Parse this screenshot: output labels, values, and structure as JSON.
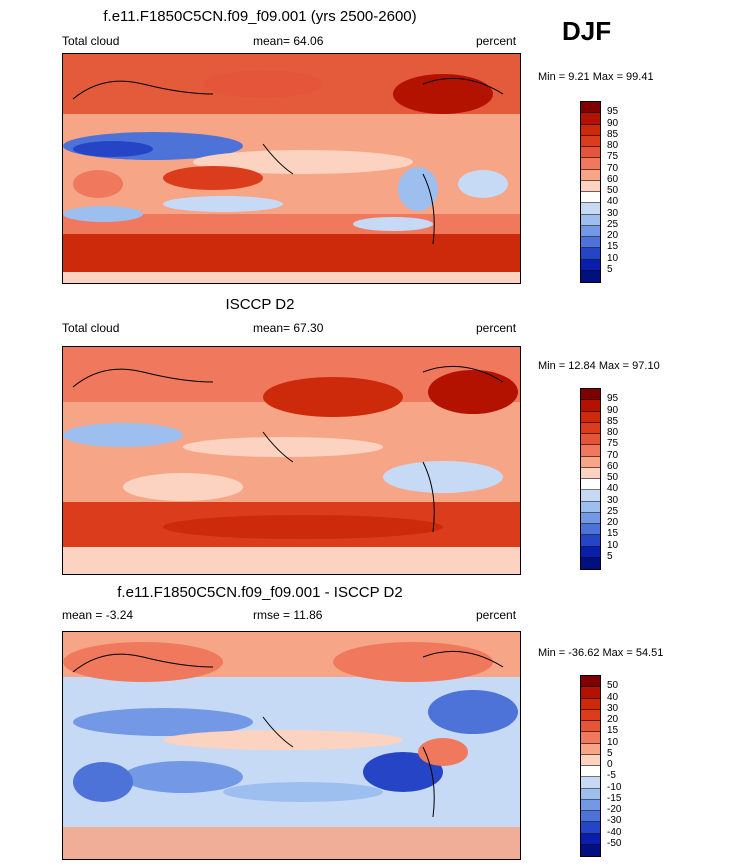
{
  "season": "DJF",
  "panels": [
    {
      "title": "f.e11.F1850C5CN.f09_f09.001 (yrs 2500-2600)",
      "left_label": "Total cloud",
      "center_label": "mean=  64.06",
      "right_label": "percent",
      "minmax": "Min =   9.21 Max =  99.41",
      "levels": [
        "95",
        "90",
        "85",
        "80",
        "75",
        "70",
        "60",
        "50",
        "40",
        "30",
        "25",
        "20",
        "15",
        "10",
        "5"
      ]
    },
    {
      "title": "ISCCP D2",
      "left_label": "Total cloud",
      "center_label": "mean=  67.30",
      "right_label": "percent",
      "minmax": "Min =  12.84 Max =  97.10",
      "levels": [
        "95",
        "90",
        "85",
        "80",
        "75",
        "70",
        "60",
        "50",
        "40",
        "30",
        "25",
        "20",
        "15",
        "10",
        "5"
      ]
    },
    {
      "title": "f.e11.F1850C5CN.f09_f09.001 - ISCCP D2",
      "left_label": "mean =  -3.24",
      "center_label": "rmse =  11.86",
      "right_label": "percent",
      "minmax": "Min = -36.62 Max =  54.51",
      "levels": [
        "50",
        "40",
        "30",
        "20",
        "15",
        "10",
        "5",
        "0",
        "-5",
        "-10",
        "-15",
        "-20",
        "-30",
        "-40",
        "-50"
      ]
    }
  ],
  "colors": {
    "palette": [
      "#7f0000",
      "#b31200",
      "#cc2a0a",
      "#db3c1c",
      "#e5553a",
      "#ef785d",
      "#f7a587",
      "#fbd3c0",
      "#ffffff",
      "#c7daf5",
      "#9dbff0",
      "#7399e6",
      "#4d73d9",
      "#2645c6",
      "#0a1eac",
      "#00107f"
    ]
  },
  "chart_data": [
    {
      "type": "heatmap",
      "title": "f.e11.F1850C5CN.f09_f09.001 (yrs 2500-2600)",
      "variable": "Total cloud",
      "units": "percent",
      "mean": 64.06,
      "min": 9.21,
      "max": 99.41,
      "contour_levels": [
        5,
        10,
        15,
        20,
        25,
        30,
        40,
        50,
        60,
        70,
        75,
        80,
        85,
        90,
        95
      ],
      "x_range": [
        0,
        360
      ],
      "y_range": [
        -90,
        90
      ]
    },
    {
      "type": "heatmap",
      "title": "ISCCP D2",
      "variable": "Total cloud",
      "units": "percent",
      "mean": 67.3,
      "min": 12.84,
      "max": 97.1,
      "contour_levels": [
        5,
        10,
        15,
        20,
        25,
        30,
        40,
        50,
        60,
        70,
        75,
        80,
        85,
        90,
        95
      ],
      "x_range": [
        0,
        360
      ],
      "y_range": [
        -90,
        90
      ]
    },
    {
      "type": "heatmap",
      "title": "f.e11.F1850C5CN.f09_f09.001 - ISCCP D2",
      "units": "percent",
      "mean": -3.24,
      "rmse": 11.86,
      "min": -36.62,
      "max": 54.51,
      "contour_levels": [
        -50,
        -40,
        -30,
        -20,
        -15,
        -10,
        -5,
        0,
        5,
        10,
        15,
        20,
        30,
        40,
        50
      ],
      "x_range": [
        0,
        360
      ],
      "y_range": [
        -90,
        90
      ]
    }
  ]
}
